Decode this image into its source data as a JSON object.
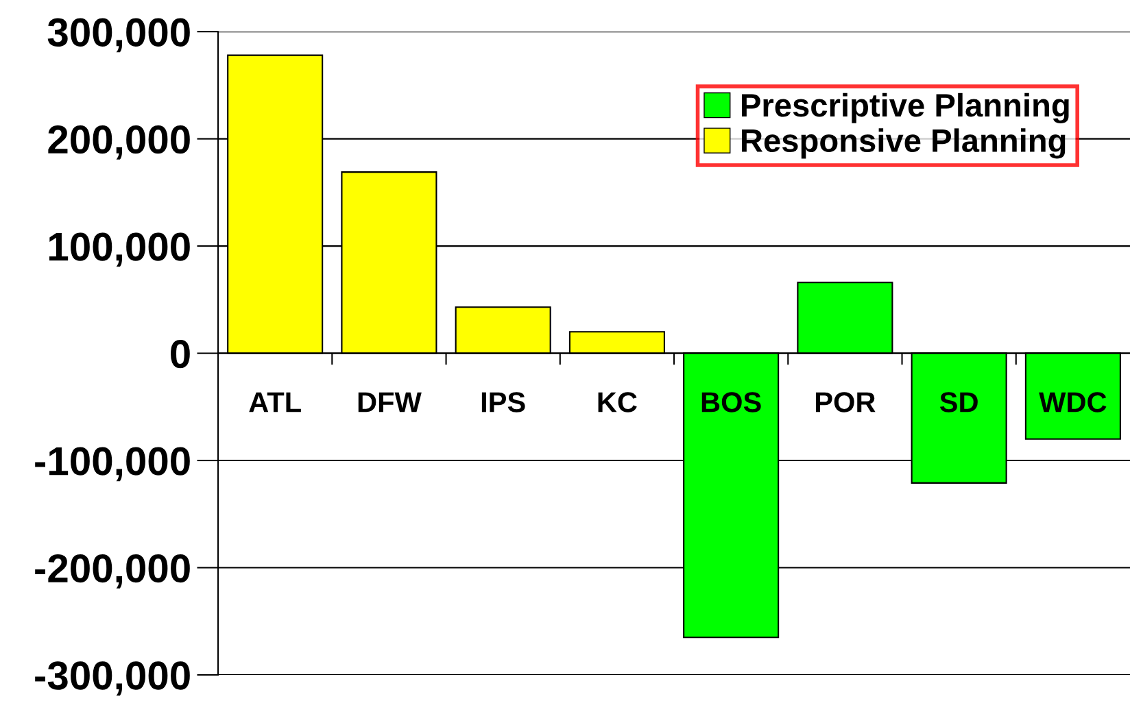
{
  "chart_data": {
    "type": "bar",
    "categories": [
      "ATL",
      "DFW",
      "IPS",
      "KC",
      "BOS",
      "POR",
      "SD",
      "WDC"
    ],
    "series": [
      {
        "name": "Prescriptive Planning",
        "color": "#00ff00",
        "values": [
          null,
          null,
          null,
          null,
          -265000,
          66000,
          -121000,
          -80000
        ]
      },
      {
        "name": "Responsive Planning",
        "color": "#ffff00",
        "values": [
          278000,
          169000,
          43000,
          20000,
          null,
          null,
          null,
          null
        ]
      }
    ],
    "ylim": [
      -300000,
      300000
    ],
    "yticks": [
      {
        "value": -300000,
        "label": "-300,000"
      },
      {
        "value": -200000,
        "label": "-200,000"
      },
      {
        "value": -100000,
        "label": "-100,000"
      },
      0,
      {
        "value": 100000,
        "label": "100,000"
      },
      {
        "value": 200000,
        "label": "200,000"
      },
      {
        "value": 300000,
        "label": "300,000"
      }
    ],
    "grid": "y",
    "legend": "top right"
  }
}
